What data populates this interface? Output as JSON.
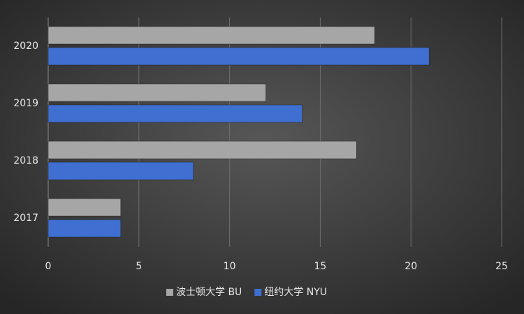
{
  "chart_data": {
    "type": "barh",
    "categories": [
      "2017",
      "2018",
      "2019",
      "2020"
    ],
    "series": [
      {
        "name": "波士顿大学 BU",
        "color": "#a6a6a6",
        "values": [
          4,
          17,
          12,
          18
        ]
      },
      {
        "name": "纽约大学 NYU",
        "color": "#3f6fd1",
        "values": [
          4,
          8,
          14,
          21
        ]
      }
    ],
    "xlim": [
      0,
      25
    ],
    "xticks": [
      0,
      5,
      10,
      15,
      20,
      25
    ],
    "grid": true,
    "legend": "bottom"
  }
}
